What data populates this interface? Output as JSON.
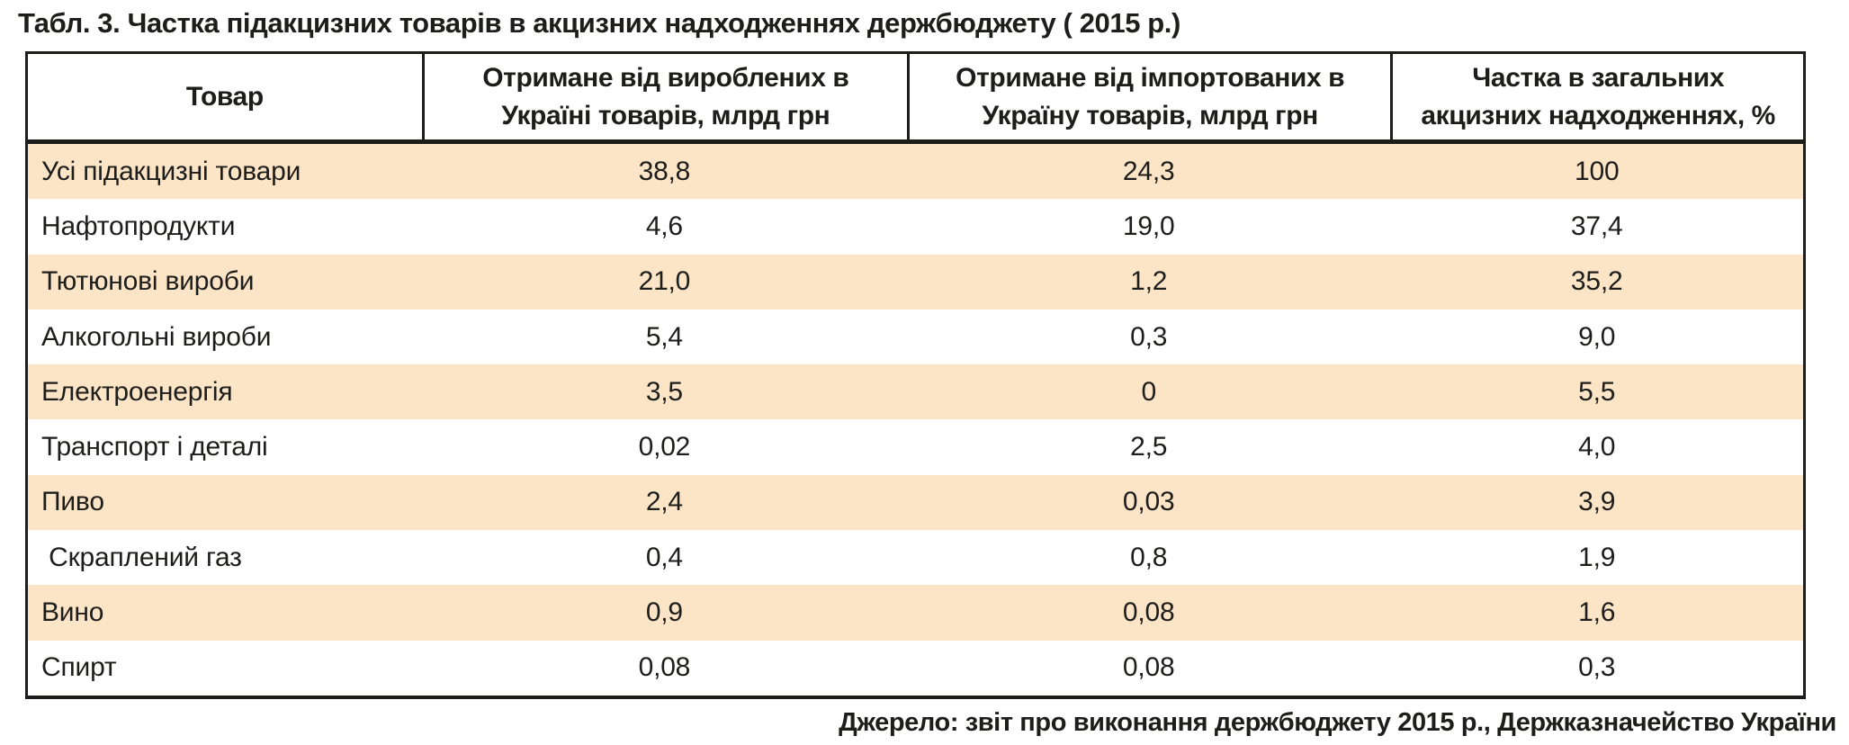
{
  "colors": {
    "stripe_row_background": "#fce4c6",
    "text": "#1d1d1b",
    "plain_row_background": "#ffffff"
  },
  "title": "Табл. 3. Частка підакцизних товарів в акцизних надходженнях держбюджету ( 2015 р.)",
  "table": {
    "columns": [
      "Товар",
      "Отримане від вироблених в Україні товарів, млрд грн",
      "Отримане від імпортованих в Україну товарів, млрд грн",
      "Частка в загальних акцизних надходженнях, %"
    ],
    "rows": [
      {
        "product": "Усі підакцизні товари",
        "produced": "38,8",
        "imported": "24,3",
        "share": "100"
      },
      {
        "product": "Нафтопродукти",
        "produced": "4,6",
        "imported": "19,0",
        "share": "37,4"
      },
      {
        "product": "Тютюнові вироби",
        "produced": "21,0",
        "imported": "1,2",
        "share": "35,2"
      },
      {
        "product": "Алкогольні вироби",
        "produced": "5,4",
        "imported": "0,3",
        "share": "9,0"
      },
      {
        "product": "Електроенергія",
        "produced": "3,5",
        "imported": "0",
        "share": "5,5"
      },
      {
        "product": "Транспорт і деталі",
        "produced": "0,02",
        "imported": "2,5",
        "share": "4,0"
      },
      {
        "product": "Пиво",
        "produced": "2,4",
        "imported": "0,03",
        "share": "3,9"
      },
      {
        "product": " Скраплений газ",
        "produced": "0,4",
        "imported": "0,8",
        "share": "1,9"
      },
      {
        "product": "Вино",
        "produced": "0,9",
        "imported": "0,08",
        "share": "1,6"
      },
      {
        "product": "Спирт",
        "produced": "0,08",
        "imported": "0,08",
        "share": "0,3"
      }
    ]
  },
  "source": "Джерело: звіт про виконання держбюджету 2015 р., Держказначейство України"
}
